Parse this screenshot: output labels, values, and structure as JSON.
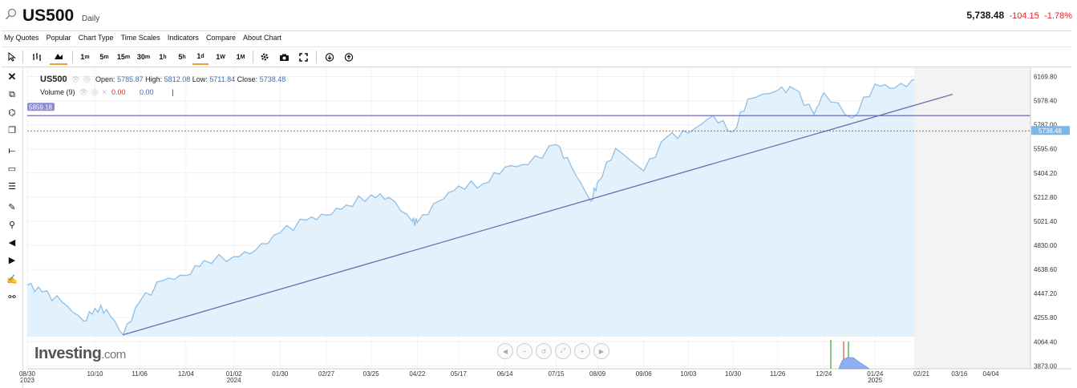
{
  "header": {
    "symbol": "US500",
    "period": "Daily",
    "price": "5,738.48",
    "change": "-104.15",
    "change_pct": "-1.78%",
    "change_color": "#e0262b"
  },
  "menu": [
    "My Quotes",
    "Popular",
    "Chart Type",
    "Time Scales",
    "Indicators",
    "Compare",
    "About Chart"
  ],
  "toolbar": {
    "intervals": [
      {
        "n": "1",
        "u": "m"
      },
      {
        "n": "5",
        "u": "m"
      },
      {
        "n": "15",
        "u": "m"
      },
      {
        "n": "30",
        "u": "m"
      },
      {
        "n": "1",
        "u": "h"
      },
      {
        "n": "5",
        "u": "h"
      },
      {
        "n": "1",
        "u": "d"
      },
      {
        "n": "1",
        "u": "W"
      },
      {
        "n": "1",
        "u": "M"
      }
    ],
    "active_interval": "1d",
    "icons": [
      "cursor-icon",
      "ohlc-icon",
      "mountain-icon",
      "gear-icon",
      "camera-icon",
      "fullscreen-icon",
      "cloud-download-icon",
      "cloud-upload-icon"
    ]
  },
  "left_tools": [
    "close-icon",
    "drawing-select-icon",
    "pattern-icon",
    "copy-icon",
    "line-tool-icon",
    "rectangle-tool-icon",
    "fibonacci-icon",
    "brush-icon",
    "zoom-icon",
    "arrow-left-icon",
    "arrow-right-icon",
    "annotate-icon",
    "magnet-icon"
  ],
  "legend": {
    "name": "US500",
    "open_label": "Open:",
    "open": "5785.87",
    "high_label": "High:",
    "high": "5812.08",
    "low_label": "Low:",
    "low": "5711.84",
    "close_label": "Close:",
    "close": "5738.48",
    "volume_label": "Volume (9)",
    "volume_val1": "0.00",
    "volume_val2": "0.00",
    "volume_sep": "|"
  },
  "logo": {
    "main": "Investing",
    "suffix": ".com"
  },
  "chart_data": {
    "type": "area",
    "series": [
      {
        "x": [
          "2023-08-30",
          "2023-09-08",
          "2023-09-20",
          "2023-10-03",
          "2023-10-10",
          "2023-10-17",
          "2023-10-27",
          "2023-11-06",
          "2023-11-20",
          "2023-12-04",
          "2023-12-15",
          "2024-01-02",
          "2024-01-15",
          "2024-01-30",
          "2024-02-15",
          "2024-02-27",
          "2024-03-10",
          "2024-03-25",
          "2024-04-05",
          "2024-04-19",
          "2024-04-22",
          "2024-05-05",
          "2024-05-17",
          "2024-06-01",
          "2024-06-14",
          "2024-06-28",
          "2024-07-15",
          "2024-07-24",
          "2024-08-05",
          "2024-08-09",
          "2024-08-20",
          "2024-09-06",
          "2024-09-20",
          "2024-10-03",
          "2024-10-18",
          "2024-10-30",
          "2024-11-08",
          "2024-11-26",
          "2024-12-06",
          "2024-12-18",
          "2024-12-24",
          "2025-01-10",
          "2025-01-24",
          "2025-02-05",
          "2025-02-19",
          "2025-02-28",
          "2025-03-07"
        ],
        "y": [
          4515,
          4460,
          4380,
          4230,
          4330,
          4320,
          4120,
          4380,
          4550,
          4590,
          4710,
          4740,
          4790,
          4930,
          5030,
          5070,
          5150,
          5230,
          5210,
          5020,
          5010,
          5180,
          5300,
          5320,
          5450,
          5470,
          5630,
          5460,
          5180,
          5330,
          5600,
          5420,
          5690,
          5720,
          5860,
          5730,
          5990,
          6060,
          6070,
          5870,
          6040,
          5840,
          6110,
          6080,
          6140,
          5940,
          5738.48
        ]
      }
    ],
    "y_ticks": [
      6169.8,
      5978.4,
      5787.0,
      5595.6,
      5404.2,
      5212.8,
      5021.4,
      4830.0,
      4638.6,
      4447.2,
      4255.8,
      4064.4,
      3873.0
    ],
    "ylim": [
      3850,
      6230
    ],
    "x_ticks": [
      {
        "label": "08/30",
        "sub": "2023",
        "date": "2023-08-30"
      },
      {
        "label": "10/10",
        "sub": "",
        "date": "2023-10-10"
      },
      {
        "label": "11/06",
        "sub": "",
        "date": "2023-11-06"
      },
      {
        "label": "12/04",
        "sub": "",
        "date": "2023-12-04"
      },
      {
        "label": "01/02",
        "sub": "2024",
        "date": "2024-01-02"
      },
      {
        "label": "01/30",
        "sub": "",
        "date": "2024-01-30"
      },
      {
        "label": "02/27",
        "sub": "",
        "date": "2024-02-27"
      },
      {
        "label": "03/25",
        "sub": "",
        "date": "2024-03-25"
      },
      {
        "label": "04/22",
        "sub": "",
        "date": "2024-04-22"
      },
      {
        "label": "05/17",
        "sub": "",
        "date": "2024-05-17"
      },
      {
        "label": "06/14",
        "sub": "",
        "date": "2024-06-14"
      },
      {
        "label": "07/15",
        "sub": "",
        "date": "2024-07-15"
      },
      {
        "label": "08/09",
        "sub": "",
        "date": "2024-08-09"
      },
      {
        "label": "09/06",
        "sub": "",
        "date": "2024-09-06"
      },
      {
        "label": "10/03",
        "sub": "",
        "date": "2024-10-03"
      },
      {
        "label": "10/30",
        "sub": "",
        "date": "2024-10-30"
      },
      {
        "label": "11/26",
        "sub": "",
        "date": "2024-11-26"
      },
      {
        "label": "12/24",
        "sub": "",
        "date": "2024-12-24"
      },
      {
        "label": "01/24",
        "sub": "2025",
        "date": "2025-01-24"
      },
      {
        "label": "02/21",
        "sub": "",
        "date": "2025-02-21"
      },
      {
        "label": "03/16",
        "sub": "",
        "date": "2025-03-16"
      },
      {
        "label": "04/04",
        "sub": "",
        "date": "2025-04-04"
      }
    ],
    "xlim": [
      "2023-08-30",
      "2025-04-28"
    ],
    "horizontal_line": {
      "value": 5859.18,
      "label": "5859.18",
      "color": "#6b6bb5"
    },
    "trend_line": {
      "start": {
        "date": "2023-10-27",
        "value": 4120
      },
      "end": {
        "date": "2025-03-07",
        "value": 6010
      },
      "color": "#6b6bb5"
    },
    "last_price": {
      "value": 5738.48,
      "label": "5738.48"
    },
    "grid": true,
    "colors": {
      "line": "#8fbfe6",
      "fill": "#e3f1fc",
      "last_price_bg": "#7cb6e6"
    }
  }
}
